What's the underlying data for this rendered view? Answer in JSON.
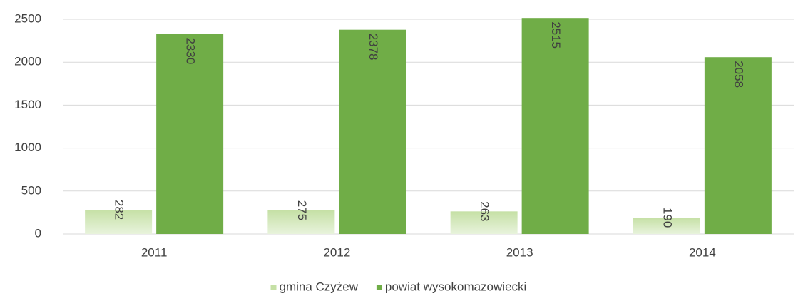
{
  "chart_data": {
    "type": "bar",
    "categories": [
      "2011",
      "2012",
      "2013",
      "2014"
    ],
    "series": [
      {
        "name": "gmina Czyżew",
        "color": "#c5e0a5",
        "values": [
          282,
          275,
          263,
          190
        ]
      },
      {
        "name": "powiat wysokomazowiecki",
        "color": "#70ad47",
        "values": [
          2330,
          2378,
          2515,
          2058
        ]
      }
    ],
    "ylim": [
      0,
      2500
    ],
    "yticks": [
      0,
      500,
      1000,
      1500,
      2000,
      2500
    ],
    "grid": true,
    "legend": "bottom"
  }
}
